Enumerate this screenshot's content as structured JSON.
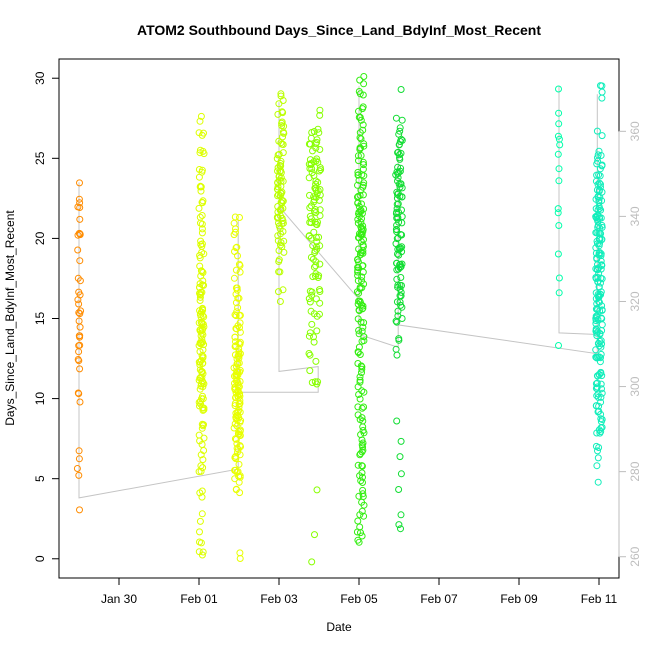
{
  "chart_data": {
    "type": "scatter",
    "title": "ATOM2 Southbound Days_Since_Land_BdyInf_Most_Recent",
    "xlabel": "Date",
    "ylabel": "Days_Since_Land_BdyInf_Most_Recent",
    "x_axis": {
      "type": "date",
      "range": [
        "2010-01-28T12:00",
        "2010-02-11T12:00"
      ],
      "ticks": [
        {
          "label": "Jan 30",
          "value": "2010-01-30"
        },
        {
          "label": "Feb 01",
          "value": "2010-02-01"
        },
        {
          "label": "Feb 03",
          "value": "2010-02-03"
        },
        {
          "label": "Feb 05",
          "value": "2010-02-05"
        },
        {
          "label": "Feb 07",
          "value": "2010-02-07"
        },
        {
          "label": "Feb 09",
          "value": "2010-02-09"
        },
        {
          "label": "Feb 11",
          "value": "2010-02-11"
        }
      ]
    },
    "y_axis": {
      "range": [
        -1.2,
        31.2
      ],
      "ticks": [
        0,
        5,
        10,
        15,
        20,
        25,
        30
      ]
    },
    "y2_axis": {
      "range": [
        255,
        377
      ],
      "ticks": [
        260,
        280,
        300,
        320,
        340,
        360
      ],
      "color": "#bdbdbd"
    },
    "grid": false,
    "legend": "none",
    "track_color": "#c4c4c4",
    "track": [
      [
        "2010-01-29T00:00",
        3.8
      ],
      [
        "2010-01-29T00:00",
        23.5
      ],
      [
        "2010-01-29T00:00",
        3.8
      ],
      [
        "2010-02-01T23:30",
        5.6
      ],
      [
        "2010-02-01T23:30",
        21.2
      ],
      [
        "2010-02-01T23:30",
        10.4
      ],
      [
        "2010-02-03T23:30",
        10.4
      ],
      [
        "2010-02-03T23:30",
        12.0
      ],
      [
        "2010-02-03T00:00",
        11.7
      ],
      [
        "2010-02-03T00:00",
        28.5
      ],
      [
        "2010-02-03T00:00",
        22.0
      ],
      [
        "2010-02-05T00:00",
        16.2
      ],
      [
        "2010-02-05T00:00",
        29.5
      ],
      [
        "2010-02-05T00:00",
        14.0
      ],
      [
        "2010-02-05T23:30",
        13.2
      ],
      [
        "2010-02-05T23:30",
        26.0
      ],
      [
        "2010-02-05T23:30",
        14.6
      ],
      [
        "2010-02-10T23:00",
        12.8
      ],
      [
        "2010-02-10T23:00",
        29.0
      ],
      [
        "2010-02-10T23:00",
        14.0
      ],
      [
        "2010-02-10T00:00",
        14.1
      ],
      [
        "2010-02-10T00:00",
        29.5
      ]
    ],
    "series": [
      {
        "color": "#ff8c00",
        "x_window": [
          "2010-01-28T23:00",
          "2010-01-29T01:00"
        ],
        "points": [
          [
            23.6,
            1
          ],
          [
            22.1,
            2
          ],
          [
            21.7,
            2
          ],
          [
            21.3,
            1
          ],
          [
            20.5,
            2
          ],
          [
            20.0,
            2
          ],
          [
            19.3,
            1
          ],
          [
            18.7,
            1
          ],
          [
            17.6,
            1
          ],
          [
            17.1,
            1
          ],
          [
            16.7,
            2
          ],
          [
            16.3,
            1
          ],
          [
            15.9,
            1
          ],
          [
            15.5,
            2
          ],
          [
            15.1,
            1
          ],
          [
            14.6,
            2
          ],
          [
            14.2,
            2
          ],
          [
            13.9,
            1
          ],
          [
            13.5,
            1
          ],
          [
            13.0,
            2
          ],
          [
            12.7,
            2
          ],
          [
            12.2,
            1
          ],
          [
            10.5,
            2
          ],
          [
            9.8,
            1
          ],
          [
            6.5,
            1
          ],
          [
            6.1,
            1
          ],
          [
            5.6,
            1
          ],
          [
            5.2,
            1
          ],
          [
            3.2,
            1
          ]
        ]
      },
      {
        "color": "#ddff00",
        "x_window": [
          "2010-02-01T00:00",
          "2010-02-01T03:00"
        ],
        "points": [
          [
            27.3,
            2
          ],
          [
            26.5,
            3
          ],
          [
            25.3,
            4
          ],
          [
            24.0,
            4
          ],
          [
            23.0,
            4
          ],
          [
            22.0,
            4
          ],
          [
            21.3,
            3
          ],
          [
            20.6,
            3
          ],
          [
            19.7,
            4
          ],
          [
            18.9,
            4
          ],
          [
            18.0,
            5
          ],
          [
            17.2,
            6
          ],
          [
            16.3,
            7
          ],
          [
            15.5,
            8
          ],
          [
            14.8,
            8
          ],
          [
            14.0,
            9
          ],
          [
            13.2,
            9
          ],
          [
            12.4,
            9
          ],
          [
            11.6,
            8
          ],
          [
            10.8,
            8
          ],
          [
            10.0,
            6
          ],
          [
            9.2,
            5
          ],
          [
            8.4,
            4
          ],
          [
            7.6,
            3
          ],
          [
            6.8,
            3
          ],
          [
            6.0,
            3
          ],
          [
            5.2,
            2
          ],
          [
            4.4,
            2
          ],
          [
            3.8,
            1
          ],
          [
            3.1,
            1
          ],
          [
            2.5,
            1
          ],
          [
            1.9,
            1
          ],
          [
            1.2,
            1
          ],
          [
            0.7,
            2
          ],
          [
            0.3,
            2
          ]
        ]
      },
      {
        "color": "#e8ff00",
        "x_window": [
          "2010-02-01T21:00",
          "2010-02-02T01:00"
        ],
        "points": [
          [
            21.2,
            3
          ],
          [
            20.4,
            3
          ],
          [
            19.5,
            3
          ],
          [
            18.6,
            3
          ],
          [
            17.7,
            3
          ],
          [
            16.8,
            4
          ],
          [
            16.0,
            4
          ],
          [
            15.2,
            5
          ],
          [
            14.4,
            6
          ],
          [
            13.6,
            8
          ],
          [
            12.8,
            9
          ],
          [
            12.0,
            10
          ],
          [
            11.2,
            11
          ],
          [
            10.5,
            11
          ],
          [
            9.8,
            10
          ],
          [
            9.0,
            9
          ],
          [
            8.3,
            8
          ],
          [
            7.6,
            7
          ],
          [
            6.9,
            6
          ],
          [
            6.2,
            5
          ],
          [
            5.5,
            5
          ],
          [
            4.9,
            4
          ],
          [
            4.4,
            3
          ],
          [
            0.2,
            2
          ]
        ]
      },
      {
        "color": "#bbff00",
        "x_window": [
          "2010-02-02T23:00",
          "2010-02-03T03:00"
        ],
        "points": [
          [
            28.7,
            4
          ],
          [
            28.0,
            3
          ],
          [
            27.2,
            4
          ],
          [
            26.4,
            4
          ],
          [
            25.7,
            4
          ],
          [
            25.0,
            5
          ],
          [
            24.4,
            6
          ],
          [
            23.8,
            7
          ],
          [
            23.2,
            7
          ],
          [
            22.6,
            7
          ],
          [
            22.1,
            7
          ],
          [
            21.6,
            6
          ],
          [
            21.1,
            6
          ],
          [
            20.5,
            5
          ],
          [
            19.9,
            4
          ],
          [
            19.2,
            3
          ],
          [
            18.5,
            2
          ],
          [
            17.8,
            2
          ],
          [
            17.0,
            2
          ],
          [
            16.2,
            1
          ]
        ]
      },
      {
        "color": "#88ff00",
        "x_window": [
          "2010-02-03T18:00",
          "2010-02-04T01:00"
        ],
        "points": [
          [
            27.8,
            2
          ],
          [
            26.5,
            6
          ],
          [
            25.7,
            7
          ],
          [
            24.9,
            8
          ],
          [
            24.1,
            8
          ],
          [
            23.3,
            8
          ],
          [
            22.5,
            8
          ],
          [
            21.7,
            8
          ],
          [
            20.9,
            7
          ],
          [
            20.1,
            7
          ],
          [
            19.3,
            6
          ],
          [
            18.5,
            6
          ],
          [
            17.6,
            5
          ],
          [
            16.8,
            5
          ],
          [
            16.0,
            4
          ],
          [
            15.2,
            4
          ],
          [
            14.4,
            3
          ],
          [
            13.6,
            3
          ],
          [
            12.8,
            2
          ],
          [
            12.0,
            2
          ],
          [
            11.2,
            2
          ],
          [
            10.8,
            2
          ],
          [
            4.6,
            1
          ],
          [
            1.7,
            1
          ],
          [
            0.0,
            1
          ]
        ]
      },
      {
        "color": "#33ee11",
        "x_window": [
          "2010-02-04T23:00",
          "2010-02-05T03:00"
        ],
        "points": [
          [
            29.8,
            3
          ],
          [
            29.0,
            3
          ],
          [
            28.2,
            3
          ],
          [
            27.4,
            4
          ],
          [
            26.5,
            4
          ],
          [
            25.7,
            5
          ],
          [
            24.9,
            5
          ],
          [
            24.1,
            6
          ],
          [
            23.3,
            6
          ],
          [
            22.5,
            7
          ],
          [
            21.7,
            8
          ],
          [
            20.9,
            9
          ],
          [
            20.1,
            9
          ],
          [
            19.3,
            8
          ],
          [
            18.5,
            7
          ],
          [
            17.7,
            7
          ],
          [
            16.9,
            6
          ],
          [
            16.1,
            6
          ],
          [
            15.3,
            5
          ],
          [
            14.5,
            5
          ],
          [
            13.7,
            5
          ],
          [
            12.9,
            4
          ],
          [
            12.1,
            4
          ],
          [
            11.3,
            4
          ],
          [
            10.5,
            4
          ],
          [
            9.7,
            4
          ],
          [
            8.9,
            4
          ],
          [
            8.1,
            4
          ],
          [
            7.3,
            4
          ],
          [
            6.5,
            4
          ],
          [
            5.7,
            4
          ],
          [
            4.9,
            4
          ],
          [
            4.1,
            4
          ],
          [
            3.3,
            3
          ],
          [
            2.5,
            3
          ],
          [
            1.8,
            3
          ],
          [
            1.2,
            3
          ]
        ]
      },
      {
        "color": "#11dd33",
        "x_window": [
          "2010-02-05T22:00",
          "2010-02-06T02:00"
        ],
        "points": [
          [
            29.1,
            1
          ],
          [
            27.5,
            2
          ],
          [
            26.8,
            3
          ],
          [
            25.9,
            5
          ],
          [
            25.1,
            6
          ],
          [
            24.3,
            7
          ],
          [
            23.5,
            7
          ],
          [
            22.7,
            7
          ],
          [
            21.9,
            7
          ],
          [
            21.1,
            7
          ],
          [
            20.3,
            7
          ],
          [
            19.5,
            7
          ],
          [
            18.7,
            7
          ],
          [
            17.9,
            6
          ],
          [
            17.1,
            6
          ],
          [
            16.3,
            5
          ],
          [
            15.5,
            4
          ],
          [
            14.7,
            3
          ],
          [
            13.9,
            2
          ],
          [
            12.9,
            2
          ],
          [
            8.4,
            1
          ],
          [
            7.6,
            1
          ],
          [
            6.7,
            1
          ],
          [
            5.4,
            1
          ],
          [
            4.0,
            1
          ],
          [
            3.0,
            1
          ],
          [
            1.9,
            2
          ]
        ]
      },
      {
        "color": "#00ffaa",
        "x_window": [
          "2010-02-09T23:30",
          "2010-02-10T00:30"
        ],
        "points": [
          [
            29.6,
            1
          ],
          [
            27.5,
            2
          ],
          [
            26.3,
            2
          ],
          [
            25.6,
            2
          ],
          [
            24.7,
            1
          ],
          [
            23.7,
            1
          ],
          [
            21.6,
            2
          ],
          [
            20.9,
            1
          ],
          [
            19.1,
            1
          ],
          [
            17.3,
            1
          ],
          [
            16.3,
            1
          ],
          [
            13.2,
            1
          ]
        ]
      },
      {
        "color": "#11eebb",
        "x_window": [
          "2010-02-10T22:00",
          "2010-02-11T02:00"
        ],
        "points": [
          [
            29.5,
            2
          ],
          [
            28.9,
            2
          ],
          [
            26.7,
            2
          ],
          [
            25.3,
            4
          ],
          [
            24.5,
            5
          ],
          [
            23.7,
            7
          ],
          [
            22.9,
            8
          ],
          [
            22.1,
            9
          ],
          [
            21.3,
            10
          ],
          [
            20.5,
            10
          ],
          [
            19.7,
            10
          ],
          [
            18.9,
            10
          ],
          [
            18.1,
            10
          ],
          [
            17.3,
            10
          ],
          [
            16.5,
            10
          ],
          [
            15.7,
            10
          ],
          [
            14.9,
            10
          ],
          [
            14.1,
            9
          ],
          [
            13.3,
            8
          ],
          [
            12.5,
            8
          ],
          [
            11.7,
            7
          ],
          [
            10.9,
            7
          ],
          [
            10.1,
            6
          ],
          [
            9.3,
            6
          ],
          [
            8.5,
            5
          ],
          [
            7.7,
            4
          ],
          [
            6.9,
            3
          ],
          [
            6.1,
            2
          ],
          [
            4.6,
            1
          ]
        ]
      }
    ]
  }
}
